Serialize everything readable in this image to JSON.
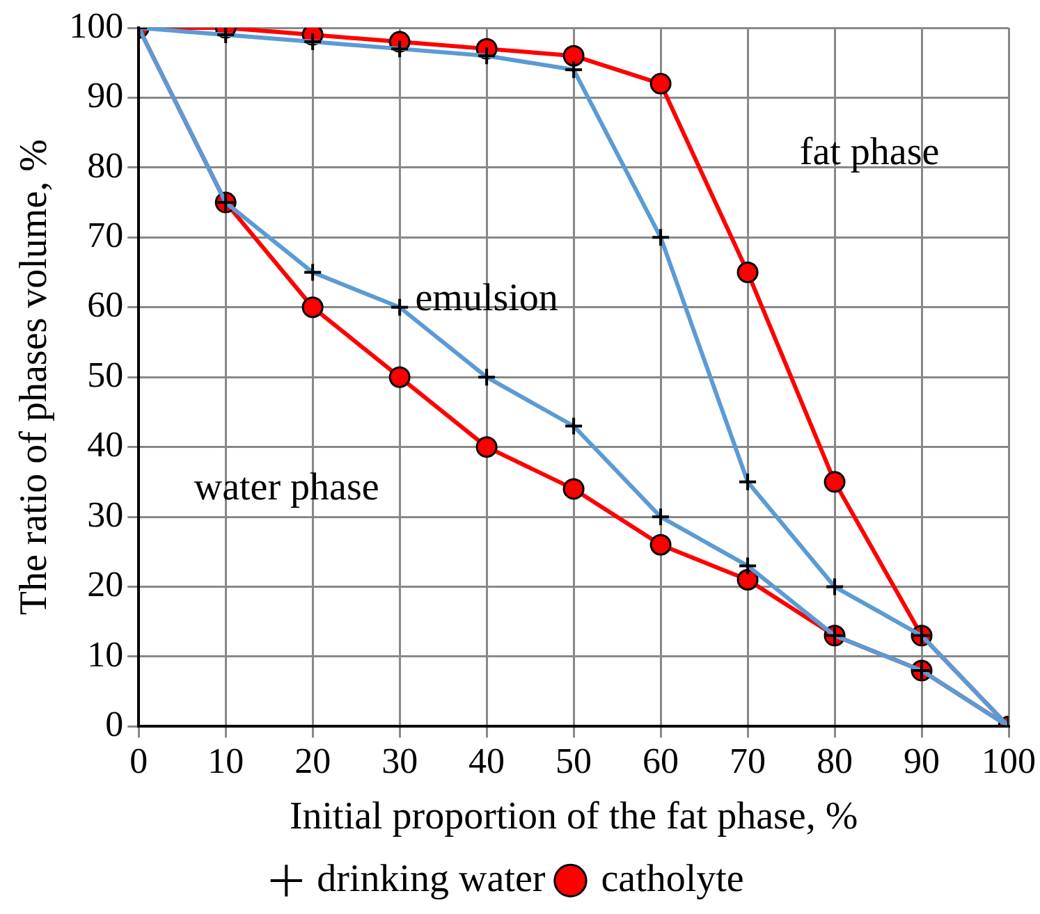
{
  "chart_data": {
    "type": "line",
    "xlabel": "Initial proportion of the fat phase, %",
    "ylabel": "The ratio of phases volume, %",
    "x": [
      0,
      10,
      20,
      30,
      40,
      50,
      60,
      70,
      80,
      90,
      100
    ],
    "series": [
      {
        "name": "catholyte",
        "color": "#ff0000",
        "marker": "circle",
        "values": [
          100,
          100,
          99,
          98,
          97,
          96,
          92,
          65,
          35,
          13,
          0
        ]
      },
      {
        "name": "drinking water",
        "color": "#5b9bd5",
        "marker": "cross",
        "values": [
          100,
          99,
          98,
          97,
          96,
          94,
          70,
          35,
          20,
          13,
          0
        ]
      },
      {
        "color": "#ff0000",
        "marker": "circle",
        "values": [
          100,
          75,
          60,
          50,
          40,
          34,
          26,
          21,
          13,
          8,
          0
        ]
      },
      {
        "color": "#5b9bd5",
        "marker": "cross",
        "values": [
          100,
          75,
          65,
          60,
          50,
          43,
          30,
          23,
          13,
          8,
          0
        ]
      }
    ],
    "xlim": [
      0,
      100
    ],
    "xticks": [
      0,
      10,
      20,
      30,
      40,
      50,
      60,
      70,
      80,
      90,
      100
    ],
    "ylim": [
      0,
      100
    ],
    "yticks": [
      0,
      10,
      20,
      30,
      40,
      50,
      60,
      70,
      80,
      90,
      100
    ],
    "grid": true,
    "legend": "bottom",
    "line_style": "solid",
    "annotations": [
      "fat phase",
      "emulsion",
      "water phase"
    ]
  }
}
